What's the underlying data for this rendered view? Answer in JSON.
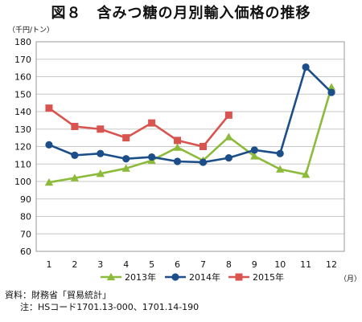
{
  "chart_data": {
    "type": "line",
    "title": "図８　含みつ糖の月別輸入価格の推移",
    "ylabel": "（千円/トン）",
    "xlabel": "（月）",
    "categories": [
      "1",
      "2",
      "3",
      "4",
      "5",
      "6",
      "7",
      "8",
      "9",
      "10",
      "11",
      "12"
    ],
    "ylim": [
      60,
      180
    ],
    "yticks": [
      60,
      70,
      80,
      90,
      100,
      110,
      120,
      130,
      140,
      150,
      160,
      170,
      180
    ],
    "grid": true,
    "legend_position": "bottom",
    "series": [
      {
        "name": "2013年",
        "color": "#8cbb3c",
        "marker": "triangle",
        "values": [
          99.5,
          102,
          104.5,
          107.5,
          112,
          119.5,
          112,
          125.5,
          114.5,
          107,
          104,
          154
        ]
      },
      {
        "name": "2014年",
        "color": "#1c4e8a",
        "marker": "circle",
        "values": [
          121,
          115,
          116,
          113,
          114,
          111.5,
          111,
          113.5,
          118,
          116,
          165.5,
          151
        ]
      },
      {
        "name": "2015年",
        "color": "#d9534f",
        "marker": "square",
        "values": [
          142,
          131.5,
          130,
          125,
          133.5,
          123.5,
          120,
          138,
          null,
          null,
          null,
          null
        ]
      }
    ]
  },
  "notes": {
    "source": "資料：財務省「貿易統計」",
    "note": "注：HSコード1701.13-000、1701.14-190"
  }
}
